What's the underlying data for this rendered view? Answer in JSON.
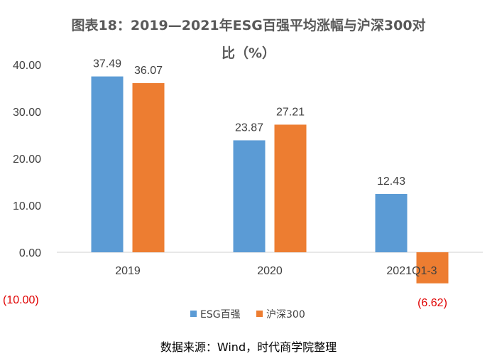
{
  "chart_data": {
    "type": "bar",
    "title_line1": "图表18：2019—2021年ESG百强平均涨幅与沪深300对",
    "title_line2": "比（%）",
    "categories": [
      "2019",
      "2020",
      "2021Q1-3"
    ],
    "series": [
      {
        "name": "ESG百强",
        "color": "#5b9bd5",
        "values": [
          37.49,
          23.87,
          12.43
        ],
        "labels": [
          "37.49",
          "23.87",
          "12.43"
        ]
      },
      {
        "name": "沪深300",
        "color": "#ed7d31",
        "values": [
          36.07,
          27.21,
          -6.62
        ],
        "labels": [
          "36.07",
          "27.21",
          "(6.62)"
        ]
      }
    ],
    "y_ticks": [
      {
        "value": 40,
        "label": "40.00"
      },
      {
        "value": 30,
        "label": "30.00"
      },
      {
        "value": 20,
        "label": "20.00"
      },
      {
        "value": 10,
        "label": "10.00"
      },
      {
        "value": 0,
        "label": "0.00"
      },
      {
        "value": -10,
        "label": "(10.00)"
      }
    ],
    "ylim": [
      -10,
      40
    ],
    "xlabel": "",
    "ylabel": "",
    "grid": false,
    "legend_position": "bottom",
    "negative_color": "#e00000",
    "axis_color": "#d9d9d9",
    "source": "数据来源：Wind，时代商学院整理"
  }
}
